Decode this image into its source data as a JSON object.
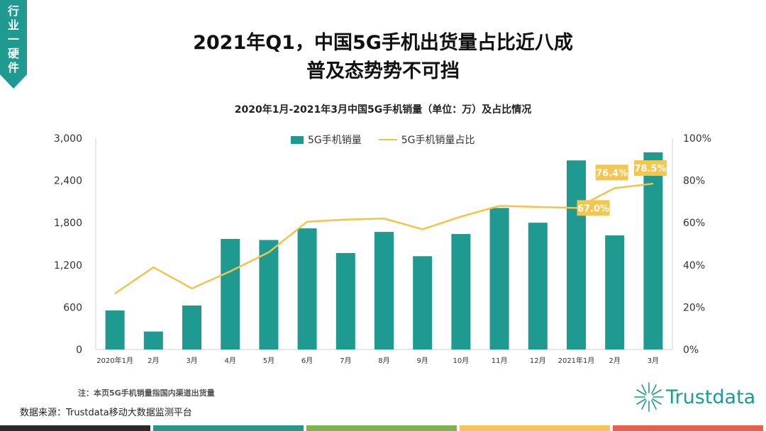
{
  "side_tab": "行业一硬件",
  "title_line1": "2021年Q1，中国5G手机出货量占比近八成",
  "title_line2": "普及态势势不可挡",
  "note": "注：本页5G手机销量指国内渠道出货量",
  "source": "数据来源：Trustdata移动大数据监测平台",
  "logo_text": "Trustdata",
  "colors": {
    "bar": "#1f9a91",
    "line": "#f0c44c",
    "label_bg": "#f5c64f",
    "teal": "#1f9a91"
  },
  "bottom_colors": [
    "#2a2a2a",
    "#1f9a91",
    "#7ab648",
    "#f5c64f",
    "#e8604c"
  ],
  "chart_data": {
    "type": "bar+line",
    "title": "2020年1月-2021年3月中国5G手机销量（单位：万）及占比情况",
    "categories": [
      "2020年1月",
      "2月",
      "3月",
      "4月",
      "5月",
      "6月",
      "7月",
      "8月",
      "9月",
      "10月",
      "11月",
      "12月",
      "2021年1月",
      "2月",
      "3月"
    ],
    "series": [
      {
        "name": "5G手机销量",
        "type": "bar",
        "axis": "left",
        "values": [
          555,
          255,
          625,
          1570,
          1555,
          1720,
          1370,
          1670,
          1325,
          1640,
          2010,
          1800,
          2685,
          1620,
          2800
        ]
      },
      {
        "name": "5G手机销量占比",
        "type": "line",
        "axis": "right",
        "values": [
          26.5,
          38.9,
          28.9,
          37.0,
          46.0,
          60.5,
          61.5,
          62.0,
          56.9,
          62.9,
          68.0,
          67.5,
          67.0,
          76.4,
          78.5
        ]
      }
    ],
    "left_axis": {
      "ticks": [
        "0",
        "600",
        "1,200",
        "1,800",
        "2,400",
        "3,000"
      ],
      "ylim": [
        0,
        3000
      ]
    },
    "right_axis": {
      "ticks": [
        "0%",
        "20%",
        "40%",
        "60%",
        "80%",
        "100%"
      ],
      "ylim": [
        0,
        100
      ]
    },
    "data_labels": [
      {
        "index": 12,
        "text": "67.0%"
      },
      {
        "index": 13,
        "text": "76.4%"
      },
      {
        "index": 14,
        "text": "78.5%"
      }
    ]
  }
}
